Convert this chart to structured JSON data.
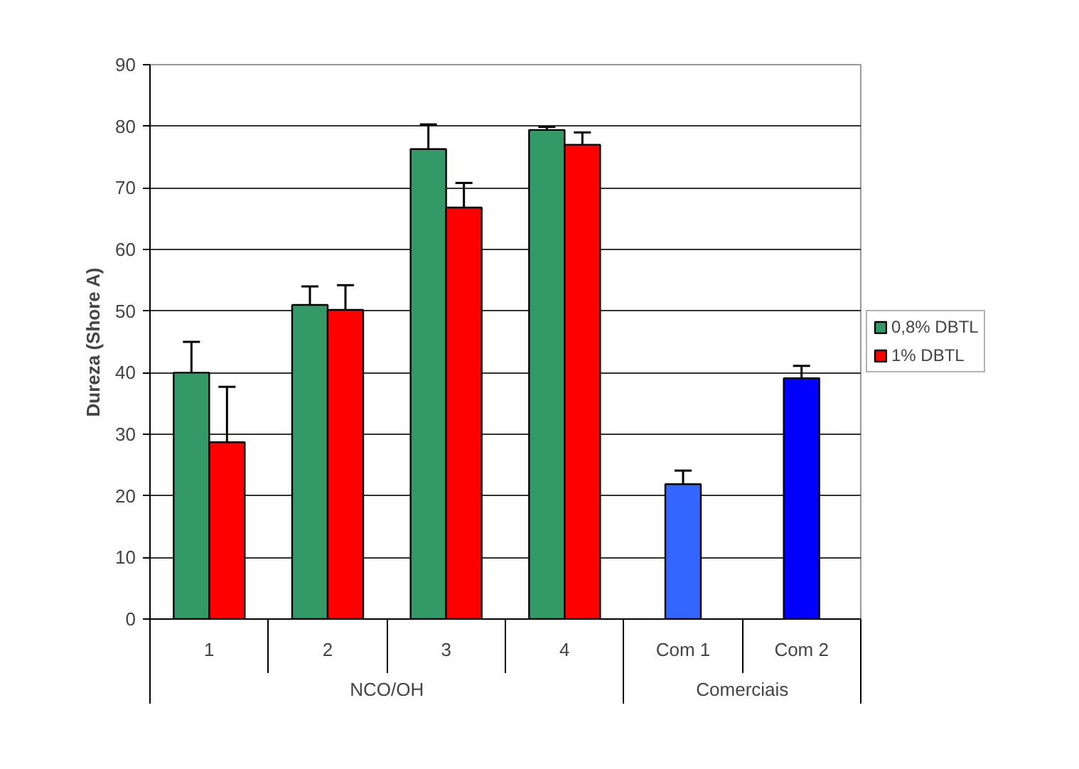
{
  "chart_data": {
    "type": "bar",
    "ylabel": "Dureza (Shore A)",
    "categories": [
      "1",
      "2",
      "3",
      "4",
      "Com 1",
      "Com 2"
    ],
    "series": [
      {
        "name": "0,8% DBTL",
        "color": "#339966",
        "values": [
          40,
          51,
          76.3,
          79.4,
          null,
          null
        ],
        "errors": [
          5,
          3,
          4,
          0.5,
          null,
          null
        ]
      },
      {
        "name": "1% DBTL",
        "color": "#ff0000",
        "values": [
          28.7,
          50.2,
          66.8,
          77,
          null,
          null
        ],
        "errors": [
          9,
          4,
          4,
          2,
          null,
          null
        ]
      },
      {
        "colors": [
          null,
          null,
          null,
          null,
          "#3366ff",
          "#0000ff"
        ],
        "values": [
          null,
          null,
          null,
          null,
          21.9,
          39.1
        ],
        "errors": [
          null,
          null,
          null,
          null,
          2.2,
          2
        ]
      }
    ],
    "ylim": [
      0,
      90
    ],
    "yticks": [
      0,
      10,
      20,
      30,
      40,
      50,
      60,
      70,
      80,
      90
    ],
    "grid": "y",
    "legend": "right",
    "annotations": [
      "NCO/OH",
      "Comerciais"
    ]
  }
}
